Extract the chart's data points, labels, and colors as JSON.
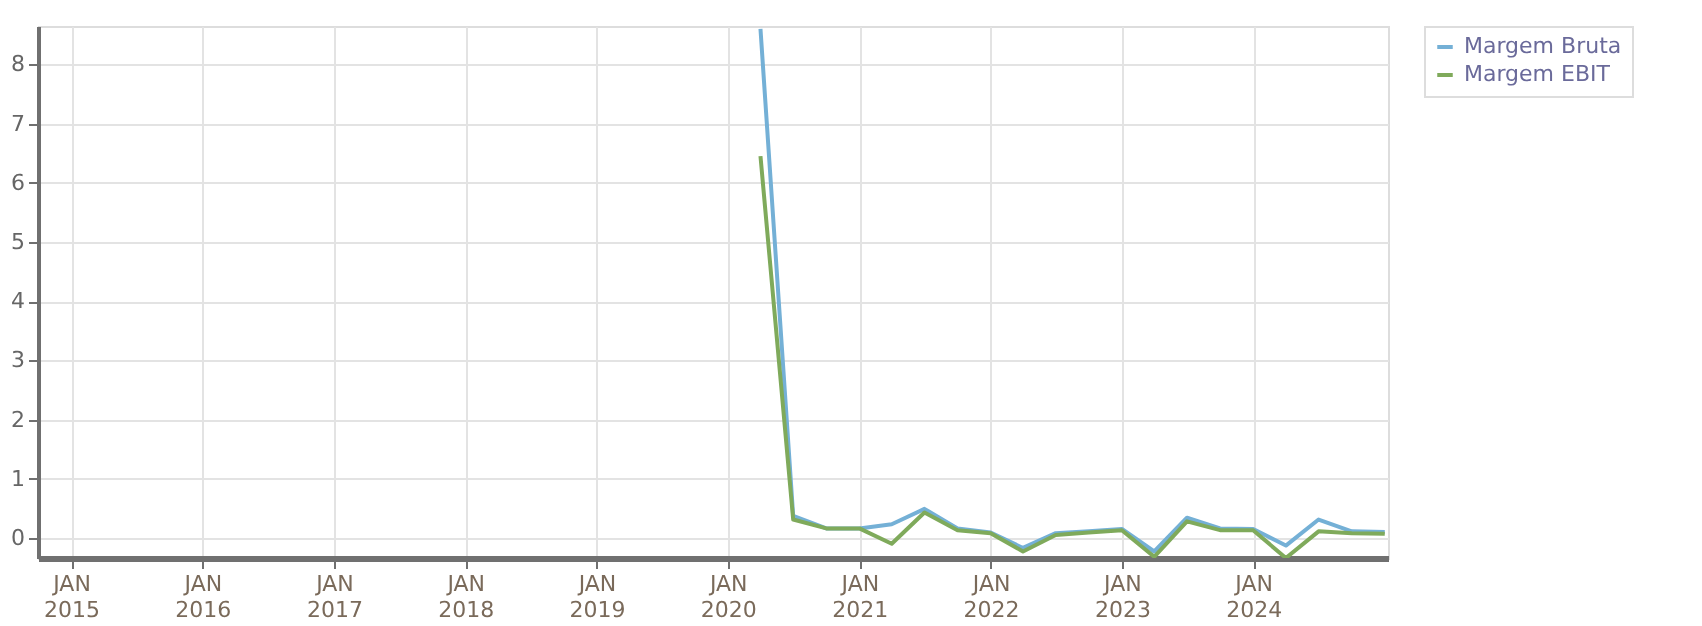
{
  "chart_data": {
    "type": "line",
    "x": [
      "2020-04",
      "2020-07",
      "2020-10",
      "2021-01",
      "2021-04",
      "2021-07",
      "2021-10",
      "2022-01",
      "2022-04",
      "2022-07",
      "2022-10",
      "2023-01",
      "2023-04",
      "2023-07",
      "2023-10",
      "2024-01",
      "2024-04",
      "2024-07",
      "2024-10",
      "2025-01"
    ],
    "series": [
      {
        "name": "Margem Bruta",
        "color": "#74b0d6",
        "values": [
          8.6,
          0.37,
          0.16,
          0.16,
          0.23,
          0.49,
          0.16,
          0.09,
          -0.17,
          0.08,
          0.11,
          0.15,
          -0.23,
          0.34,
          0.16,
          0.15,
          -0.13,
          0.31,
          0.11,
          0.1
        ]
      },
      {
        "name": "Margem EBIT",
        "color": "#7faa5b",
        "values": [
          6.45,
          0.31,
          0.16,
          0.16,
          -0.1,
          0.43,
          0.13,
          0.08,
          -0.23,
          0.05,
          0.09,
          0.13,
          -0.32,
          0.28,
          0.13,
          0.13,
          -0.34,
          0.11,
          0.08,
          0.07
        ]
      }
    ],
    "xlim": [
      "2014-10-01",
      "2025-01-10"
    ],
    "xticks": [
      {
        "value": "2015-01-01",
        "label": "JAN\n2015"
      },
      {
        "value": "2016-01-01",
        "label": "JAN\n2016"
      },
      {
        "value": "2017-01-01",
        "label": "JAN\n2017"
      },
      {
        "value": "2018-01-01",
        "label": "JAN\n2018"
      },
      {
        "value": "2019-01-01",
        "label": "JAN\n2019"
      },
      {
        "value": "2020-01-01",
        "label": "JAN\n2020"
      },
      {
        "value": "2021-01-01",
        "label": "JAN\n2021"
      },
      {
        "value": "2022-01-01",
        "label": "JAN\n2022"
      },
      {
        "value": "2023-01-01",
        "label": "JAN\n2023"
      },
      {
        "value": "2024-01-01",
        "label": "JAN\n2024"
      }
    ],
    "ylim": [
      -0.34,
      8.65
    ],
    "yticks": [
      0,
      1,
      2,
      3,
      4,
      5,
      6,
      7,
      8
    ],
    "grid": true,
    "legend": "top right",
    "marker": "none",
    "line_style": "solid"
  }
}
